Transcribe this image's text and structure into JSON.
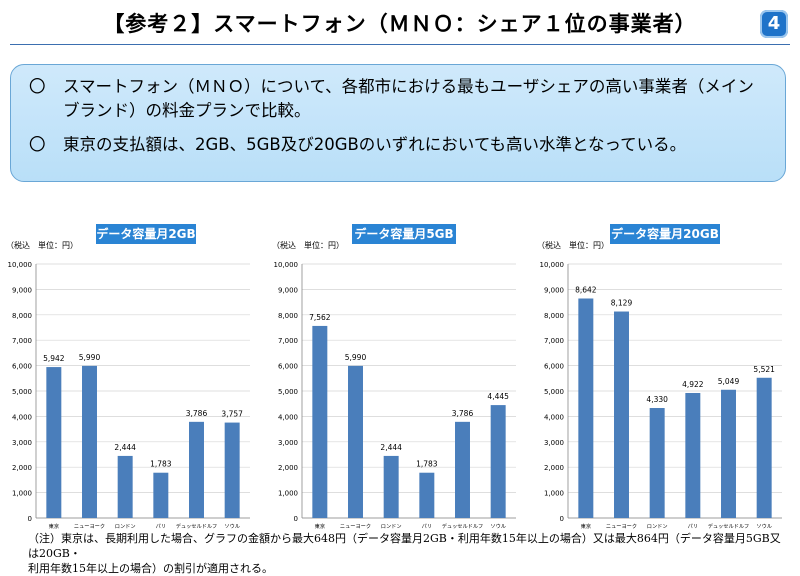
{
  "header": {
    "title": "【参考２】スマートフォン（ＭＮＯ：シェア１位の事業者）",
    "page_number": "4"
  },
  "summary": {
    "bullets": [
      {
        "mark": "〇",
        "text": "スマートフォン（ＭＮＯ）について、各都市における最もユーザシェアの高い事業者（メインブランド）の料金プランで比較。"
      },
      {
        "mark": "〇",
        "text": "東京の支払額は、2GB、5GB及び20GBのいずれにおいても高い水準となっている。"
      }
    ]
  },
  "chart_data": [
    {
      "type": "bar",
      "title": "データ容量月2GB",
      "unit_label": "（税込　単位：円）",
      "categories": [
        "東京",
        "ニューヨーク",
        "ロンドン",
        "パリ",
        "デュッセルドルフ",
        "ソウル"
      ],
      "values": [
        5942,
        5990,
        2444,
        1783,
        3786,
        3757
      ],
      "value_labels": [
        "5,942",
        "5,990",
        "2,444",
        "1,783",
        "3,786",
        "3,757"
      ],
      "ylim": [
        0,
        10000
      ],
      "yticks": [
        "0",
        "1,000",
        "2,000",
        "3,000",
        "4,000",
        "5,000",
        "6,000",
        "7,000",
        "8,000",
        "9,000",
        "10,000"
      ],
      "grid": true,
      "bar_color": "#4a7ebb"
    },
    {
      "type": "bar",
      "title": "データ容量月5GB",
      "unit_label": "（税込　単位：円）",
      "categories": [
        "東京",
        "ニューヨーク",
        "ロンドン",
        "パリ",
        "デュッセルドルフ",
        "ソウル"
      ],
      "values": [
        7562,
        5990,
        2444,
        1783,
        3786,
        4445
      ],
      "value_labels": [
        "7,562",
        "5,990",
        "2,444",
        "1,783",
        "3,786",
        "4,445"
      ],
      "ylim": [
        0,
        10000
      ],
      "yticks": [
        "0",
        "1,000",
        "2,000",
        "3,000",
        "4,000",
        "5,000",
        "6,000",
        "7,000",
        "8,000",
        "9,000",
        "10,000"
      ],
      "grid": true,
      "bar_color": "#4a7ebb"
    },
    {
      "type": "bar",
      "title": "データ容量月20GB",
      "unit_label": "（税込　単位：円）",
      "categories": [
        "東京",
        "ニューヨーク",
        "ロンドン",
        "パリ",
        "デュッセルドルフ",
        "ソウル"
      ],
      "values": [
        8642,
        8129,
        4330,
        4922,
        5049,
        5521
      ],
      "value_labels": [
        "8,642",
        "8,129",
        "4,330",
        "4,922",
        "5,049",
        "5,521"
      ],
      "ylim": [
        0,
        10000
      ],
      "yticks": [
        "0",
        "1,000",
        "2,000",
        "3,000",
        "4,000",
        "5,000",
        "6,000",
        "7,000",
        "8,000",
        "9,000",
        "10,000"
      ],
      "grid": true,
      "bar_color": "#4a7ebb"
    }
  ],
  "footnote": {
    "line1": "（注）東京は、長期利用した場合、グラフの金額から最大648円（データ容量月2GB・利用年数15年以上の場合）又は最大864円（データ容量月5GB又は20GB・",
    "line2": "利用年数15年以上の場合）の割引が適用される。"
  }
}
